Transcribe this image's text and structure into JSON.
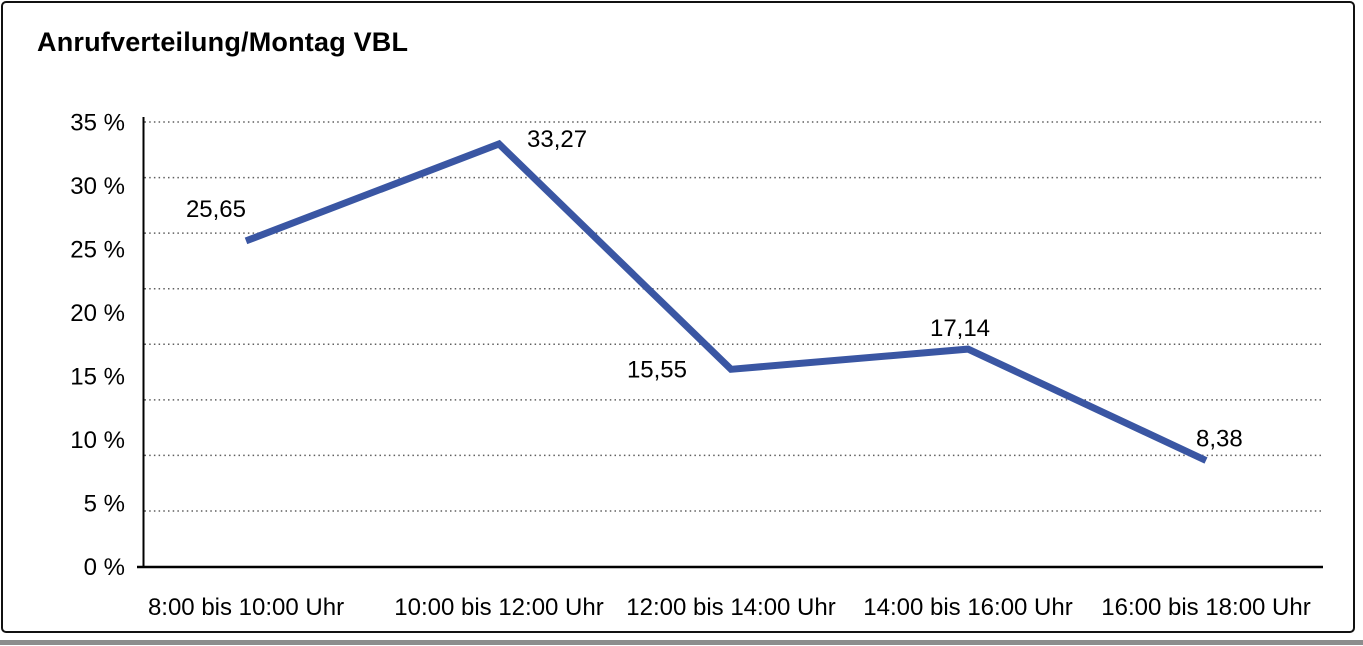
{
  "title": "Anrufverteilung/Montag VBL",
  "chart_data": {
    "type": "line",
    "title": "Anrufverteilung/Montag VBL",
    "categories": [
      "8:00 bis 10:00 Uhr",
      "10:00 bis 12:00 Uhr",
      "12:00 bis 14:00 Uhr",
      "14:00 bis 16:00 Uhr",
      "16:00 bis 18:00 Uhr"
    ],
    "series": [
      {
        "name": "Anrufverteilung Montag VBL",
        "values": [
          25.65,
          33.27,
          15.55,
          17.14,
          8.38
        ],
        "value_labels": [
          "25,65",
          "33,27",
          "15,55",
          "17,14",
          "8,38"
        ]
      }
    ],
    "xlabel": "",
    "ylabel": "",
    "ylim": [
      0,
      35
    ],
    "y_tick_labels": [
      "35 %",
      "30 %",
      "25 %",
      "20 %",
      "15 %",
      "10 %",
      "5 %",
      "0 %"
    ],
    "y_tick_values": [
      35,
      30,
      25,
      20,
      15,
      10,
      5,
      0
    ],
    "gridline_intervals": 8,
    "grid": "horizontal-dotted",
    "legend": "none",
    "decimal_separator": ",",
    "colors": {
      "line": "#3A56A3",
      "axis": "#000000",
      "grid_dots": "#5f5f5f",
      "text": "#000000",
      "frame_border": "#111111",
      "screenshot_bottom_edge": "#8d8d8d"
    }
  }
}
